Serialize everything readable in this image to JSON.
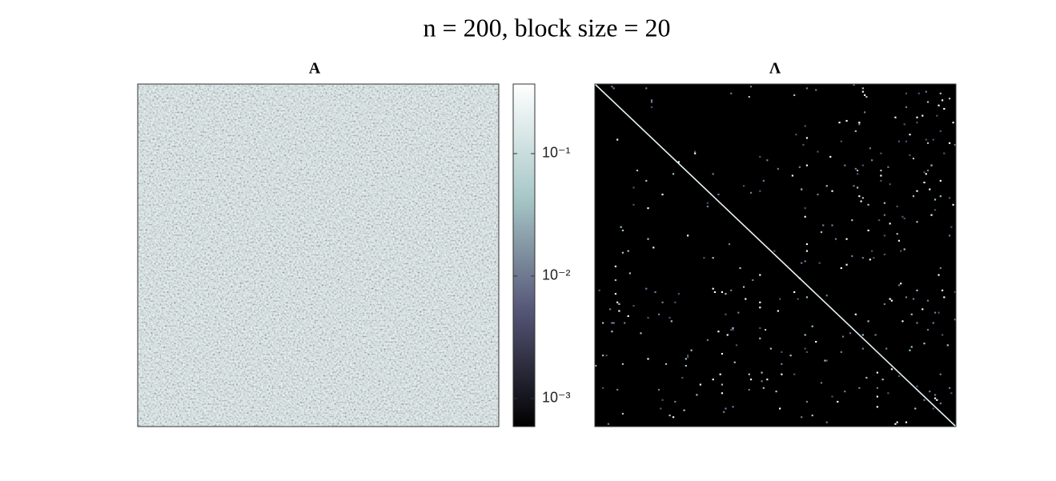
{
  "title": "n = 200, block size = 20",
  "chart_data": [
    {
      "type": "heatmap",
      "title": "A",
      "colormap": [
        "#000000",
        "#545475",
        "#a7c7c7",
        "#ffffff"
      ]
    },
    {
      "type": "colorbar",
      "log_scale": true,
      "ylim": [
        0.00059,
        0.37
      ],
      "yticks": [
        {
          "value": 0.001,
          "label": "10⁻³"
        },
        {
          "value": 0.01,
          "label": "10⁻²"
        },
        {
          "value": 0.1,
          "label": "10⁻¹"
        }
      ],
      "colormap": [
        "#000000",
        "#545475",
        "#a7c7c7",
        "#ffffff"
      ]
    },
    {
      "type": "heatmap",
      "title": "Λ",
      "colormap": [
        "#000000",
        "#545475",
        "#a7c7c7",
        "#ffffff"
      ]
    }
  ]
}
